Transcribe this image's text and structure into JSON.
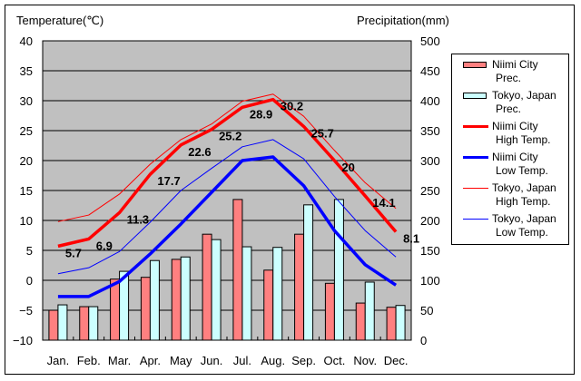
{
  "chart_data": {
    "type": "bar+line",
    "left_axis_title": "Temperature(℃)",
    "right_axis_title": "Precipitation(mm)",
    "categories": [
      "Jan.",
      "Feb.",
      "Mar.",
      "Apr.",
      "May",
      "Jun.",
      "Jul.",
      "Aug.",
      "Sep.",
      "Oct.",
      "Nov.",
      "Dec."
    ],
    "left_ylim": [
      -10,
      40
    ],
    "left_ticks": [
      "40",
      "35",
      "30",
      "25",
      "20",
      "15",
      "10",
      "5",
      "0",
      "-5",
      "-10"
    ],
    "right_ylim": [
      0,
      500
    ],
    "right_ticks": [
      "500",
      "450",
      "400",
      "350",
      "300",
      "250",
      "200",
      "150",
      "100",
      "50",
      "0"
    ],
    "grid": true,
    "legend_position": "right",
    "bar_series": [
      {
        "name": "Niimi City Prec.",
        "label_lines": [
          "Niimi City",
          "Prec."
        ],
        "color": "#ff8080",
        "values": [
          50,
          56,
          102,
          105,
          135,
          177,
          235,
          117,
          177,
          95,
          62,
          55
        ]
      },
      {
        "name": "Tokyo, Japan Prec.",
        "label_lines": [
          "Tokyo, Japan",
          "Prec."
        ],
        "color": "#ccffff",
        "values": [
          59,
          56,
          115,
          133,
          139,
          168,
          156,
          155,
          226,
          235,
          97,
          58
        ]
      }
    ],
    "line_series": [
      {
        "name": "Niimi City High Temp.",
        "label_lines": [
          "Niimi City",
          "High Temp."
        ],
        "color": "#ff0000",
        "width": "thick",
        "values": [
          5.7,
          6.9,
          11.3,
          17.7,
          22.6,
          25.2,
          28.9,
          30.2,
          25.7,
          20,
          14.1,
          8.1
        ],
        "data_labels": [
          "5.7",
          "6.9",
          "11.3",
          "17.7",
          "22.6",
          "25.2",
          "28.9",
          "30.2",
          "25.7",
          "20",
          "14.1",
          "8.1"
        ]
      },
      {
        "name": "Niimi City Low Temp.",
        "label_lines": [
          "Niimi City",
          "Low Temp."
        ],
        "color": "#0000ff",
        "width": "thick",
        "values": [
          -2.7,
          -2.7,
          -0.2,
          4.4,
          9.4,
          14.7,
          20.0,
          20.6,
          15.8,
          8.3,
          2.6,
          -0.8
        ]
      },
      {
        "name": "Tokyo, Japan High Temp.",
        "label_lines": [
          "Tokyo, Japan",
          "High Temp."
        ],
        "color": "#ff0000",
        "width": "thin",
        "values": [
          9.8,
          10.9,
          14.4,
          19.4,
          23.5,
          26.1,
          29.9,
          31.1,
          27.4,
          21.7,
          16.3,
          12.0
        ]
      },
      {
        "name": "Tokyo, Japan Low Temp.",
        "label_lines": [
          "Tokyo, Japan",
          "Low Temp."
        ],
        "color": "#0000ff",
        "width": "thin",
        "values": [
          1.1,
          2.1,
          4.8,
          9.7,
          15.0,
          18.7,
          22.3,
          23.5,
          20.3,
          14.0,
          8.3,
          3.9
        ]
      }
    ],
    "plot_background": "#c0c0c0"
  }
}
